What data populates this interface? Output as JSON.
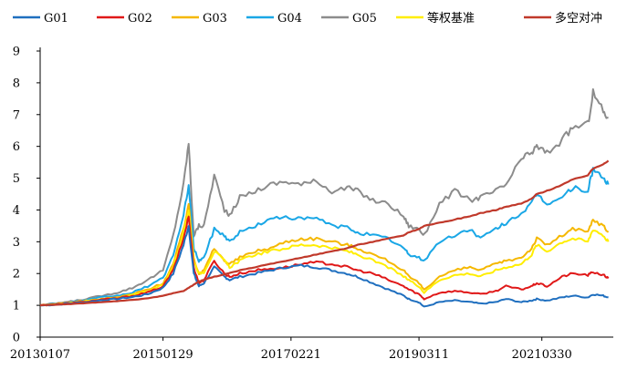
{
  "chart_data": {
    "type": "line",
    "title": "",
    "xlabel": "",
    "ylabel": "",
    "ylim": [
      0,
      9
    ],
    "y_ticks": [
      0,
      1,
      2,
      3,
      4,
      5,
      6,
      7,
      8,
      9
    ],
    "x_tick_labels": [
      "20130107",
      "20150129",
      "20170221",
      "20190311",
      "20210330"
    ],
    "grid": false,
    "legend_position": "top",
    "x": [
      "2013-01",
      "2013-04",
      "2013-07",
      "2013-10",
      "2014-01",
      "2014-04",
      "2014-07",
      "2014-10",
      "2015-01",
      "2015-03",
      "2015-05",
      "2015-06",
      "2015-07",
      "2015-08",
      "2015-09",
      "2015-11",
      "2016-01",
      "2016-02",
      "2016-04",
      "2016-07",
      "2016-10",
      "2017-01",
      "2017-04",
      "2017-07",
      "2017-10",
      "2018-01",
      "2018-03",
      "2018-06",
      "2018-09",
      "2018-12",
      "2019-01",
      "2019-03",
      "2019-04",
      "2019-07",
      "2019-10",
      "2020-01",
      "2020-03",
      "2020-06",
      "2020-08",
      "2020-11",
      "2021-01",
      "2021-02",
      "2021-04",
      "2021-07",
      "2021-09",
      "2021-12",
      "2022-01",
      "2022-03",
      "2022-04"
    ],
    "series": [
      {
        "name": "G01",
        "color": "#1f6fbf",
        "values": [
          1.0,
          1.02,
          1.06,
          1.1,
          1.16,
          1.2,
          1.26,
          1.35,
          1.55,
          2.0,
          2.9,
          3.5,
          2.0,
          1.6,
          1.7,
          2.2,
          1.9,
          1.8,
          1.9,
          2.0,
          2.1,
          2.2,
          2.25,
          2.2,
          2.1,
          2.0,
          1.9,
          1.7,
          1.5,
          1.3,
          1.2,
          1.1,
          0.95,
          1.1,
          1.15,
          1.1,
          1.05,
          1.1,
          1.2,
          1.1,
          1.15,
          1.2,
          1.15,
          1.25,
          1.3,
          1.25,
          1.35,
          1.3,
          1.25
        ]
      },
      {
        "name": "G02",
        "color": "#e01818",
        "values": [
          1.0,
          1.03,
          1.07,
          1.12,
          1.18,
          1.22,
          1.3,
          1.4,
          1.6,
          2.1,
          3.1,
          3.8,
          2.2,
          1.7,
          1.8,
          2.4,
          2.0,
          1.9,
          2.0,
          2.1,
          2.15,
          2.2,
          2.3,
          2.35,
          2.3,
          2.2,
          2.1,
          2.0,
          1.8,
          1.6,
          1.5,
          1.35,
          1.2,
          1.4,
          1.45,
          1.4,
          1.35,
          1.45,
          1.6,
          1.5,
          1.6,
          1.7,
          1.6,
          1.9,
          2.0,
          1.95,
          2.05,
          1.95,
          1.85
        ]
      },
      {
        "name": "G03",
        "color": "#f5b800",
        "values": [
          1.0,
          1.04,
          1.08,
          1.14,
          1.2,
          1.25,
          1.35,
          1.5,
          1.7,
          2.3,
          3.4,
          4.2,
          2.5,
          2.0,
          2.1,
          2.8,
          2.4,
          2.3,
          2.5,
          2.7,
          2.8,
          3.0,
          3.1,
          3.1,
          3.0,
          2.9,
          2.8,
          2.6,
          2.4,
          2.1,
          1.9,
          1.7,
          1.5,
          1.9,
          2.1,
          2.2,
          2.1,
          2.3,
          2.4,
          2.5,
          2.8,
          3.1,
          2.9,
          3.2,
          3.4,
          3.3,
          3.7,
          3.5,
          3.3
        ]
      },
      {
        "name": "G04",
        "color": "#1aa7e6",
        "values": [
          1.0,
          1.05,
          1.1,
          1.16,
          1.25,
          1.3,
          1.4,
          1.6,
          1.85,
          2.6,
          3.8,
          4.8,
          2.8,
          2.4,
          2.5,
          3.4,
          3.2,
          3.0,
          3.3,
          3.5,
          3.7,
          3.8,
          3.7,
          3.75,
          3.5,
          3.45,
          3.3,
          3.2,
          3.1,
          2.8,
          2.6,
          2.5,
          2.4,
          3.0,
          3.2,
          3.4,
          3.1,
          3.4,
          3.6,
          3.9,
          4.2,
          4.5,
          4.2,
          4.4,
          4.7,
          4.6,
          5.3,
          5.0,
          4.8
        ]
      },
      {
        "name": "G05",
        "color": "#8c8c8c",
        "values": [
          1.0,
          1.06,
          1.12,
          1.2,
          1.3,
          1.4,
          1.55,
          1.8,
          2.1,
          3.2,
          4.8,
          6.1,
          3.2,
          3.5,
          3.5,
          5.1,
          4.0,
          3.8,
          4.4,
          4.6,
          4.8,
          4.9,
          4.8,
          4.9,
          4.6,
          4.7,
          4.6,
          4.3,
          4.2,
          3.8,
          3.5,
          3.4,
          3.2,
          4.2,
          4.6,
          4.3,
          4.4,
          4.6,
          4.8,
          5.6,
          5.8,
          6.0,
          5.8,
          6.2,
          6.6,
          6.7,
          7.7,
          7.1,
          6.9
        ]
      },
      {
        "name": "等权基准",
        "color": "#ffee00",
        "values": [
          1.0,
          1.04,
          1.08,
          1.13,
          1.19,
          1.24,
          1.32,
          1.45,
          1.65,
          2.2,
          3.3,
          4.0,
          2.4,
          2.0,
          2.05,
          2.7,
          2.4,
          2.2,
          2.4,
          2.6,
          2.7,
          2.8,
          2.9,
          2.9,
          2.8,
          2.7,
          2.6,
          2.4,
          2.2,
          1.9,
          1.8,
          1.6,
          1.4,
          1.8,
          1.95,
          2.0,
          1.9,
          2.1,
          2.2,
          2.3,
          2.6,
          2.9,
          2.7,
          3.0,
          3.1,
          3.0,
          3.4,
          3.2,
          3.0
        ]
      },
      {
        "name": "多空对冲",
        "color": "#c0392b",
        "values": [
          1.0,
          1.02,
          1.04,
          1.07,
          1.1,
          1.13,
          1.17,
          1.22,
          1.3,
          1.38,
          1.45,
          1.55,
          1.65,
          1.75,
          1.8,
          1.9,
          1.97,
          2.02,
          2.1,
          2.2,
          2.3,
          2.4,
          2.5,
          2.6,
          2.7,
          2.8,
          2.9,
          3.0,
          3.1,
          3.2,
          3.3,
          3.4,
          3.5,
          3.6,
          3.7,
          3.8,
          3.9,
          4.0,
          4.1,
          4.2,
          4.35,
          4.5,
          4.6,
          4.8,
          4.95,
          5.1,
          5.3,
          5.45,
          5.55
        ]
      }
    ]
  }
}
